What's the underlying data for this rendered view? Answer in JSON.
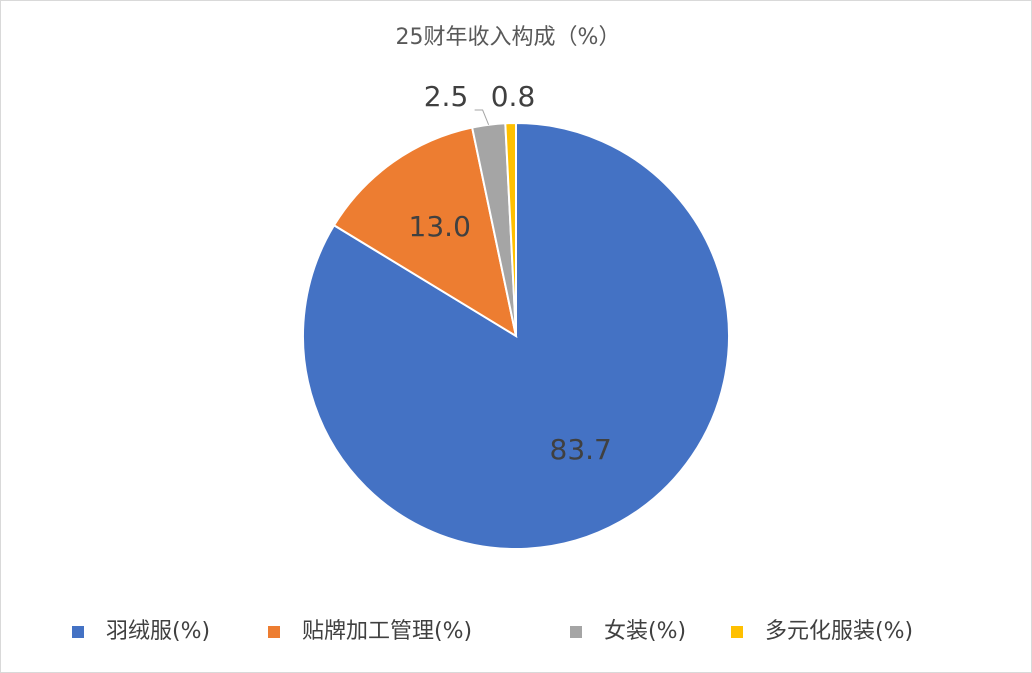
{
  "chart_data": {
    "type": "pie",
    "title": "25财年收入构成（%）",
    "categories": [
      "羽绒服(%)",
      "贴牌加工管理(%)",
      "女装(%)",
      "多元化服装(%)"
    ],
    "values": [
      83.7,
      13.0,
      2.5,
      0.8
    ],
    "value_labels": [
      "83.7",
      "13.0",
      "2.5",
      "0.8"
    ],
    "colors": [
      "#4472c4",
      "#ed7d31",
      "#a5a5a5",
      "#ffc000"
    ],
    "legend": "bottom"
  }
}
